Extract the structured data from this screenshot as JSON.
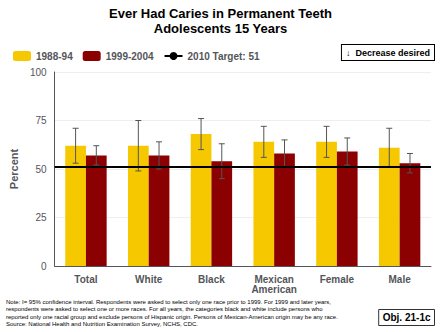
{
  "chart_data": {
    "type": "bar",
    "title": "Ever Had Caries in Permanent Teeth",
    "subtitle": "Adolescents 15 Years",
    "categories": [
      "Total",
      "White",
      "Black",
      "Mexican\nAmerican",
      "Female",
      "Male"
    ],
    "series": [
      {
        "name": "1988-94",
        "color": "#F5C800",
        "values": [
          62,
          62,
          68,
          64,
          64,
          61
        ],
        "errors": [
          9,
          13,
          8,
          8,
          8,
          10
        ]
      },
      {
        "name": "1999-2004",
        "color": "#8B0000",
        "values": [
          57,
          57,
          54,
          58,
          59,
          53
        ],
        "errors": [
          5,
          7,
          9,
          7,
          7,
          5
        ]
      }
    ],
    "target": {
      "name": "2010 Target: 51",
      "value": 51,
      "color": "#000000"
    },
    "ylabel": "Percent",
    "ylim": [
      0,
      100
    ],
    "yticks": [
      0,
      25,
      50,
      75,
      100
    ],
    "grid": true,
    "legend": "top",
    "annotations": [
      "↓  Decrease desired",
      "Note: I= 95% confidence interval. Respondents were asked to select only one race prior to 1999. For 1999 and later years,\nrespondents were asked to select one or more races. For all years, the categories black and white include persons who\nreported only one racial group and exclude persons of Hispanic origin. Persons of Mexican-American origin may be any race.\nSource: National Health and Nutrition Examination Survey, NCHS, CDC.",
      "Obj. 21-1c"
    ]
  }
}
